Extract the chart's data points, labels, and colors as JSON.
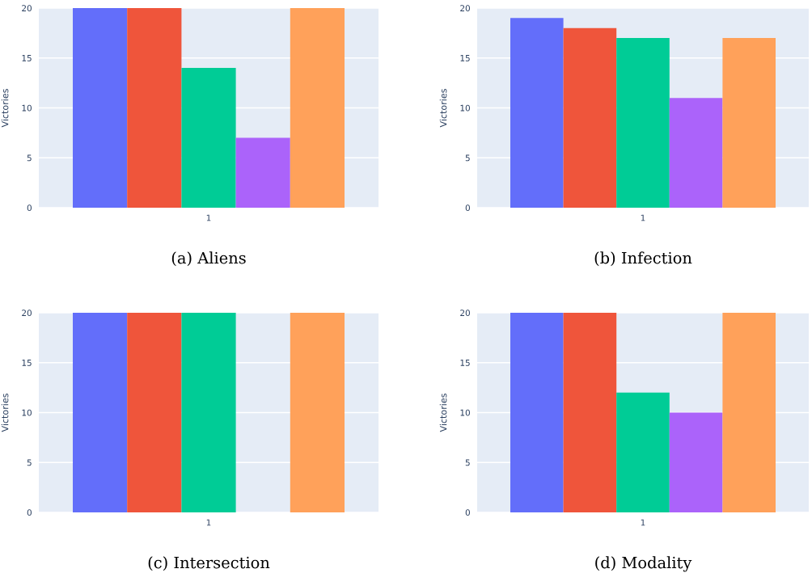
{
  "chart_data": [
    {
      "type": "bar",
      "title": "(a) Aliens",
      "ylabel": "Victories",
      "categories": [
        "1"
      ],
      "ylim": [
        0,
        20
      ],
      "yticks": [
        0,
        5,
        10,
        15,
        20
      ],
      "grid": "y",
      "legend": false,
      "series": [
        {
          "color": "#636efa",
          "values": [
            20
          ]
        },
        {
          "color": "#ef553b",
          "values": [
            20
          ]
        },
        {
          "color": "#00cc96",
          "values": [
            14
          ]
        },
        {
          "color": "#ab63fa",
          "values": [
            7
          ]
        },
        {
          "color": "#ffa15a",
          "values": [
            20
          ]
        }
      ]
    },
    {
      "type": "bar",
      "title": "(b) Infection",
      "ylabel": "Victories",
      "categories": [
        "1"
      ],
      "ylim": [
        0,
        20
      ],
      "yticks": [
        0,
        5,
        10,
        15,
        20
      ],
      "grid": "y",
      "legend": false,
      "series": [
        {
          "color": "#636efa",
          "values": [
            19
          ]
        },
        {
          "color": "#ef553b",
          "values": [
            18
          ]
        },
        {
          "color": "#00cc96",
          "values": [
            17
          ]
        },
        {
          "color": "#ab63fa",
          "values": [
            11
          ]
        },
        {
          "color": "#ffa15a",
          "values": [
            17
          ]
        }
      ]
    },
    {
      "type": "bar",
      "title": "(c) Intersection",
      "ylabel": "Victories",
      "categories": [
        "1"
      ],
      "ylim": [
        0,
        20
      ],
      "yticks": [
        0,
        5,
        10,
        15,
        20
      ],
      "grid": "y",
      "legend": false,
      "series": [
        {
          "color": "#636efa",
          "values": [
            20
          ]
        },
        {
          "color": "#ef553b",
          "values": [
            20
          ]
        },
        {
          "color": "#00cc96",
          "values": [
            20
          ]
        },
        {
          "color": "#ab63fa",
          "values": [
            0
          ]
        },
        {
          "color": "#ffa15a",
          "values": [
            20
          ]
        }
      ]
    },
    {
      "type": "bar",
      "title": "(d) Modality",
      "ylabel": "Victories",
      "categories": [
        "1"
      ],
      "ylim": [
        0,
        20
      ],
      "yticks": [
        0,
        5,
        10,
        15,
        20
      ],
      "grid": "y",
      "legend": false,
      "series": [
        {
          "color": "#636efa",
          "values": [
            20
          ]
        },
        {
          "color": "#ef553b",
          "values": [
            20
          ]
        },
        {
          "color": "#00cc96",
          "values": [
            12
          ]
        },
        {
          "color": "#ab63fa",
          "values": [
            10
          ]
        },
        {
          "color": "#ffa15a",
          "values": [
            20
          ]
        }
      ]
    }
  ]
}
